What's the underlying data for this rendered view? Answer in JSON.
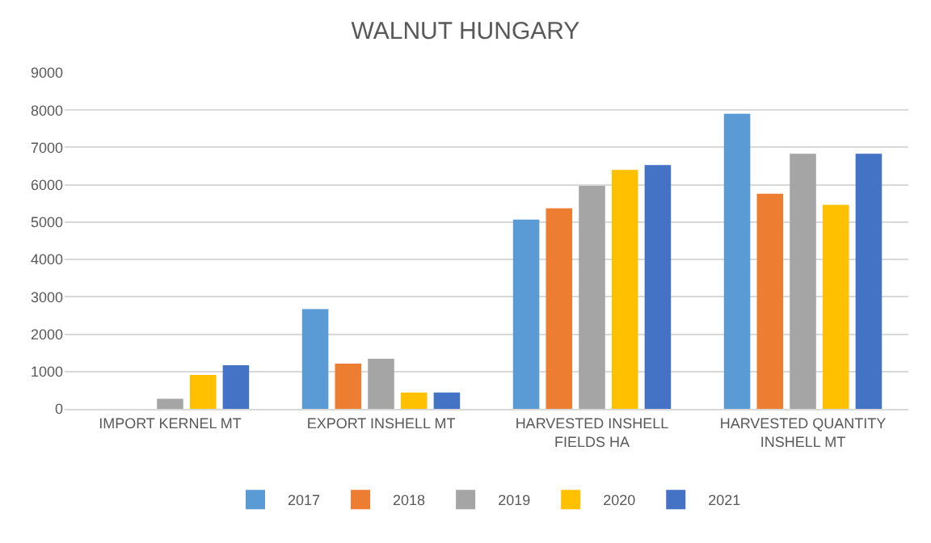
{
  "chart_data": {
    "type": "bar",
    "title": "WALNUT HUNGARY",
    "categories": [
      "IMPORT KERNEL MT",
      "EXPORT INSHELL MT",
      "HARVESTED INSHELL FIELDS HA",
      "HARVESTED QUANTITY INSHELL MT"
    ],
    "series": [
      {
        "name": "2017",
        "color": "#5b9bd5",
        "values": [
          0,
          2670,
          5070,
          7900
        ]
      },
      {
        "name": "2018",
        "color": "#ed7d31",
        "values": [
          0,
          1210,
          5370,
          5760
        ]
      },
      {
        "name": "2019",
        "color": "#a5a5a5",
        "values": [
          270,
          1340,
          5970,
          6830
        ]
      },
      {
        "name": "2020",
        "color": "#ffc000",
        "values": [
          910,
          440,
          6400,
          5460
        ]
      },
      {
        "name": "2021",
        "color": "#4472c4",
        "values": [
          1170,
          440,
          6530,
          6830
        ]
      }
    ],
    "ylim": [
      0,
      9000
    ],
    "yticks": [
      0,
      1000,
      2000,
      3000,
      4000,
      5000,
      6000,
      7000,
      8000,
      9000
    ],
    "grid": "y",
    "legend": "bottom"
  }
}
